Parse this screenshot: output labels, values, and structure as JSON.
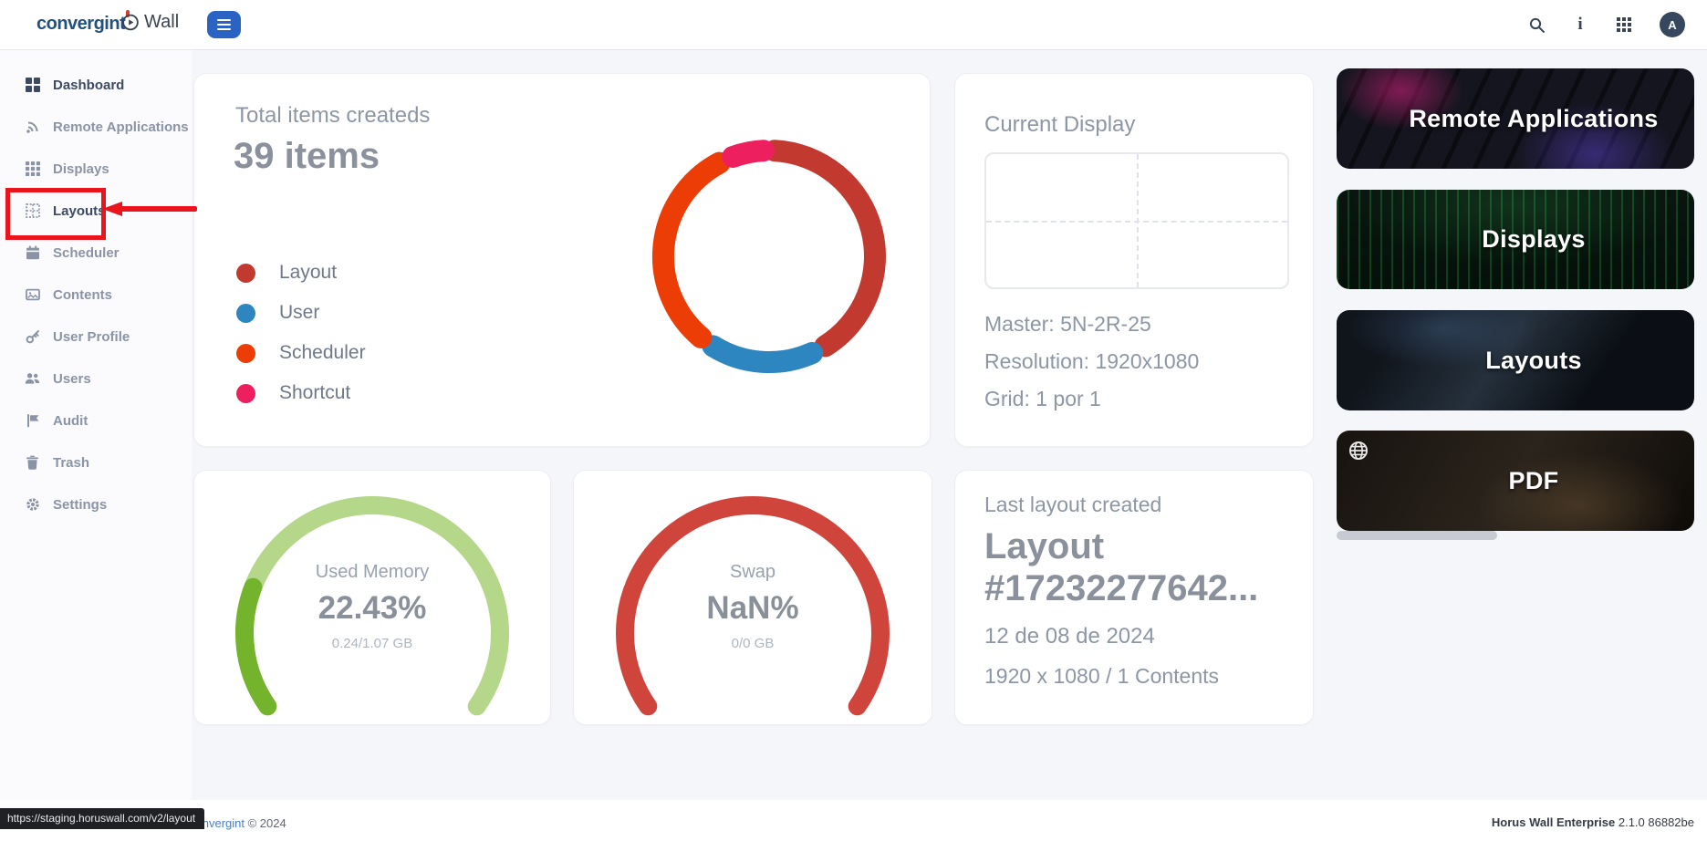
{
  "topbar": {
    "logo": "convergint",
    "product": "Wall",
    "avatar_initial": "A",
    "icons": [
      "search-icon",
      "info-icon",
      "apps-grid-icon",
      "avatar"
    ]
  },
  "colors": {
    "accent_blue": "#2b63c4",
    "annotation_red": "#e9141c",
    "page_background": "#f5f6fa"
  },
  "sidebar": {
    "items": [
      {
        "label": "Dashboard",
        "icon": "dashboard-icon",
        "active": true
      },
      {
        "label": "Remote Applications",
        "icon": "remote-applications-icon"
      },
      {
        "label": "Displays",
        "icon": "displays-icon"
      },
      {
        "label": "Layouts",
        "icon": "layouts-icon",
        "current": true,
        "annotated": true
      },
      {
        "label": "Scheduler",
        "icon": "scheduler-icon"
      },
      {
        "label": "Contents",
        "icon": "contents-icon"
      },
      {
        "label": "User Profile",
        "icon": "user-profile-icon"
      },
      {
        "label": "Users",
        "icon": "users-icon"
      },
      {
        "label": "Audit",
        "icon": "audit-icon"
      },
      {
        "label": "Trash",
        "icon": "trash-icon"
      },
      {
        "label": "Settings",
        "icon": "settings-icon"
      }
    ]
  },
  "annotation": {
    "type": "red-box-and-arrow",
    "target": "Layouts sidebar item"
  },
  "chart_data": [
    {
      "type": "donut",
      "title": "Total items createds",
      "total": 39,
      "total_label": "39 items",
      "legend_position": "left",
      "segments": [
        {
          "label": "Layout",
          "value": 17,
          "color": "#c23a2f",
          "start_deg": 3,
          "end_deg": 148
        },
        {
          "label": "User",
          "value": 7,
          "color": "#2e86c1",
          "start_deg": 156,
          "end_deg": 212
        },
        {
          "label": "Scheduler",
          "value": 13,
          "color": "#eb3d05",
          "start_deg": 220,
          "end_deg": 332
        },
        {
          "label": "Shortcut",
          "value": 2,
          "color": "#ee1f5e",
          "start_deg": 340,
          "end_deg": 357
        }
      ]
    },
    {
      "type": "gauge",
      "title": "Used Memory",
      "value_percent": 22.43,
      "value_text": "22.43%",
      "detail": "0.24/1.07 GB",
      "fill_color": "#74b42c",
      "track_color": "#b5d78a"
    },
    {
      "type": "gauge",
      "title": "Swap",
      "value_percent": null,
      "value_text": "NaN%",
      "detail": "0/0 GB",
      "fill_color": "#d0453b",
      "track_color": "#d0453b"
    }
  ],
  "cards": {
    "current_display": {
      "title": "Current Display",
      "master": "Master: 5N-2R-25",
      "resolution": "Resolution: 1920x1080",
      "grid": "Grid: 1 por 1"
    },
    "last_layout": {
      "title": "Last layout created",
      "name": "Layout #17232277642...",
      "date": "12 de 08 de 2024",
      "meta": "1920 x 1080  /  1 Contents"
    }
  },
  "quick_links": [
    {
      "label": "Remote Applications"
    },
    {
      "label": "Displays"
    },
    {
      "label": "Layouts"
    },
    {
      "label": "PDF",
      "icon": "globe-icon"
    }
  ],
  "footer": {
    "left_brand": "convergint",
    "left_suffix": " © 2024",
    "right_name": "Horus Wall Enterprise",
    "right_version": " 2.1.0 86882be"
  },
  "status_bar": {
    "url": "https://staging.horuswall.com/v2/layout"
  }
}
